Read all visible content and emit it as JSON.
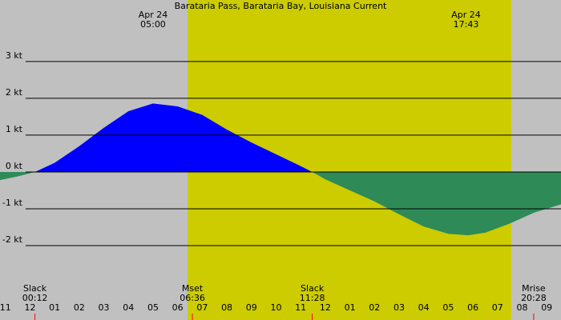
{
  "chart_data": {
    "type": "area",
    "title": "Barataria Pass, Barataria Bay, Louisiana Current",
    "x": [
      -1.22,
      -0.5,
      0.2,
      1,
      2,
      3,
      4,
      5,
      6,
      7,
      8,
      9,
      10,
      11,
      11.47,
      12,
      13,
      14,
      15,
      16,
      17,
      17.8,
      18.5,
      19.5,
      20.5,
      21.58
    ],
    "values": [
      -0.22,
      -0.12,
      0,
      0.25,
      0.7,
      1.2,
      1.65,
      1.86,
      1.78,
      1.55,
      1.15,
      0.8,
      0.48,
      0.16,
      0,
      -0.2,
      -0.5,
      -0.8,
      -1.15,
      -1.48,
      -1.68,
      -1.72,
      -1.65,
      -1.4,
      -1.1,
      -0.88
    ],
    "flood_color": "#0000ff",
    "ebb_color": "#2e8b57",
    "background_color": "#c0c0c0",
    "daylight_color": "#cccc00",
    "daylight": [
      6.4,
      19.56
    ],
    "xlim": [
      -1.22,
      21.58
    ],
    "ylim": [
      -4.02,
      4.67
    ],
    "yticks": [
      {
        "value": 3,
        "label": "3 kt"
      },
      {
        "value": 2,
        "label": "2 kt"
      },
      {
        "value": 1,
        "label": "1 kt"
      },
      {
        "value": 0,
        "label": "0 kt"
      },
      {
        "value": -1,
        "label": "-1 kt"
      },
      {
        "value": -2,
        "label": "-2 kt"
      }
    ],
    "xticks": [
      {
        "value": -1,
        "label": "11"
      },
      {
        "value": 0,
        "label": "12"
      },
      {
        "value": 1,
        "label": "01"
      },
      {
        "value": 2,
        "label": "02"
      },
      {
        "value": 3,
        "label": "03"
      },
      {
        "value": 4,
        "label": "04"
      },
      {
        "value": 5,
        "label": "05"
      },
      {
        "value": 6,
        "label": "06"
      },
      {
        "value": 7,
        "label": "07"
      },
      {
        "value": 8,
        "label": "08"
      },
      {
        "value": 9,
        "label": "09"
      },
      {
        "value": 10,
        "label": "10"
      },
      {
        "value": 11,
        "label": "11"
      },
      {
        "value": 12,
        "label": "12"
      },
      {
        "value": 13,
        "label": "01"
      },
      {
        "value": 14,
        "label": "02"
      },
      {
        "value": 15,
        "label": "03"
      },
      {
        "value": 16,
        "label": "04"
      },
      {
        "value": 17,
        "label": "05"
      },
      {
        "value": 18,
        "label": "06"
      },
      {
        "value": 19,
        "label": "07"
      },
      {
        "value": 20,
        "label": "08"
      },
      {
        "value": 21,
        "label": "09"
      }
    ],
    "top_markers": [
      {
        "label": "Apr 24",
        "time": "05:00",
        "hour": 5
      },
      {
        "label": "Apr 24",
        "time": "17:43",
        "hour": 17.72
      }
    ],
    "events": [
      {
        "label": "Slack",
        "time": "00:12",
        "hour": 0.2
      },
      {
        "label": "Mset",
        "time": "06:36",
        "hour": 6.6
      },
      {
        "label": "Slack",
        "time": "11:28",
        "hour": 11.47
      },
      {
        "label": "Mrise",
        "time": "20:28",
        "hour": 20.47
      }
    ]
  }
}
